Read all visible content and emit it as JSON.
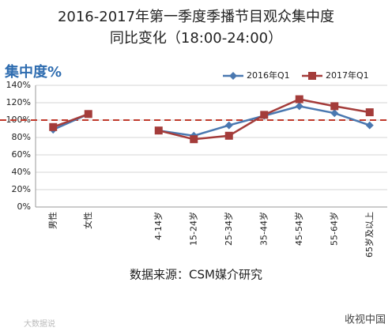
{
  "chart_data": {
    "type": "line",
    "title": "2016-2017年第一季度季播节目观众集中度",
    "subtitle": "同比变化（18:00-24:00）",
    "y_label": "集中度%",
    "categories": [
      "男性",
      "女性",
      null,
      "4-14岁",
      "15-24岁",
      "25-34岁",
      "35-44岁",
      "45-54岁",
      "55-64岁",
      "65岁及以上"
    ],
    "series": [
      {
        "name": "2016年Q1",
        "color": "#4a78b0",
        "values": [
          89,
          107,
          null,
          88,
          82,
          94,
          105,
          116,
          108,
          94
        ]
      },
      {
        "name": "2017年Q1",
        "color": "#a43c3a",
        "values": [
          92,
          107,
          null,
          88,
          78,
          82,
          106,
          124,
          116,
          109
        ]
      }
    ],
    "ylim": [
      0,
      140
    ],
    "yticks": [
      {
        "value": 0,
        "label": "0%"
      },
      {
        "value": 20,
        "label": "20%"
      },
      {
        "value": 40,
        "label": "40%"
      },
      {
        "value": 60,
        "label": "60%"
      },
      {
        "value": 80,
        "label": "80%"
      },
      {
        "value": 100,
        "label": "100%"
      },
      {
        "value": 120,
        "label": "120%"
      },
      {
        "value": 140,
        "label": "140%"
      }
    ],
    "reference_line": 100,
    "reference_color": "#c0392b",
    "grid": true,
    "legend": "top-right",
    "source": "数据来源：CSM媒介研究",
    "watermarks": [
      "大数据说",
      "收视中国"
    ]
  }
}
